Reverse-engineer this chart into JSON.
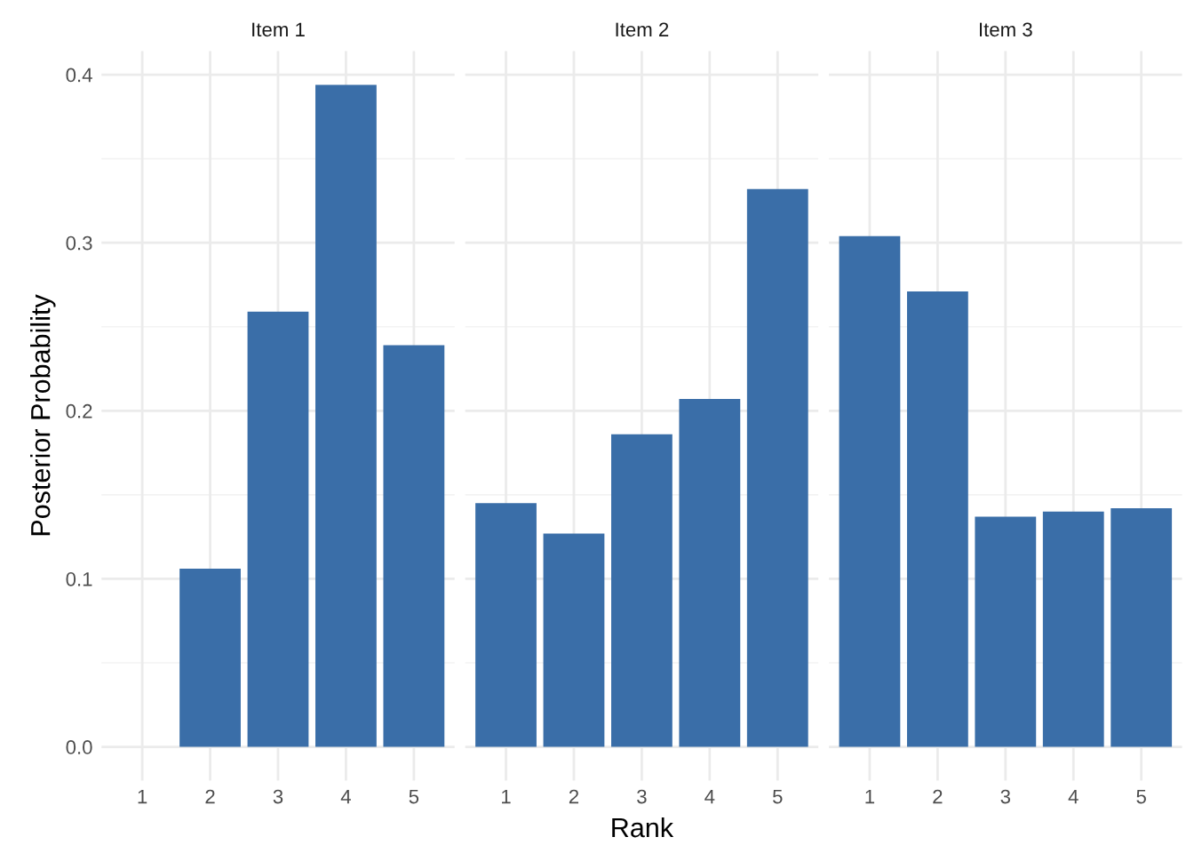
{
  "chart_data": [
    {
      "type": "bar",
      "title": "Item 1",
      "ylabel": "Posterior Probability",
      "categories": [
        "1",
        "2",
        "3",
        "4",
        "5"
      ],
      "values": [
        0,
        0.106,
        0.259,
        0.394,
        0.239
      ],
      "color": "#3a6ea8",
      "ylim": [
        -0.02,
        0.414
      ],
      "yticks": [
        {
          "value": 0,
          "label": "0.0"
        },
        0.1,
        0.2,
        0.3,
        0.4
      ],
      "grid": true
    },
    {
      "type": "bar",
      "title": "Item 2",
      "xlabel": "Rank",
      "categories": [
        "1",
        "2",
        "3",
        "4",
        "5"
      ],
      "values": [
        0.145,
        0.127,
        0.186,
        0.207,
        0.332
      ],
      "color": "#3a6ea8",
      "ylim": [
        -0.02,
        0.414
      ],
      "yticks": [
        0,
        0.1,
        0.2,
        0.3,
        0.4
      ],
      "grid": true,
      "tick_labels": "x"
    },
    {
      "type": "bar",
      "title": "Item 3",
      "categories": [
        "1",
        "2",
        "3",
        "4",
        "5"
      ],
      "values": [
        0.304,
        0.271,
        0.137,
        0.14,
        0.142
      ],
      "color": "#3a6ea8",
      "ylim": [
        -0.02,
        0.414
      ],
      "yticks": [
        0,
        0.1,
        0.2,
        0.3,
        0.4
      ],
      "grid": true,
      "tick_labels": "x"
    }
  ]
}
